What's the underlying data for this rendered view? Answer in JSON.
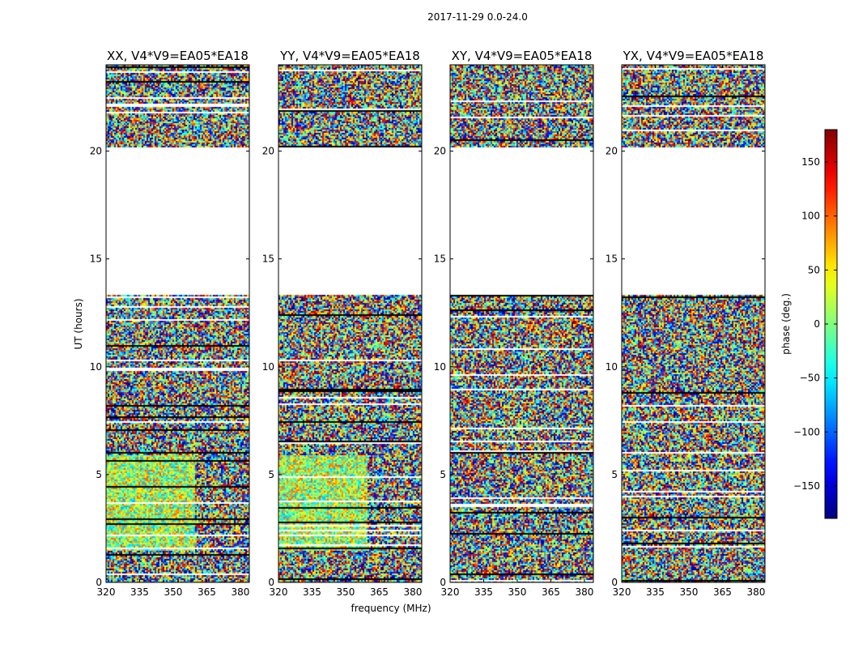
{
  "chart_data": {
    "type": "heatmap",
    "suptitle": "2017-11-29 0.0-24.0",
    "panels": [
      {
        "title": "XX, V4*V9=EA05*EA18"
      },
      {
        "title": "YY, V4*V9=EA05*EA18"
      },
      {
        "title": "XY, V4*V9=EA05*EA18"
      },
      {
        "title": "YX, V4*V9=EA05*EA18"
      }
    ],
    "xlabel": "frequency (MHz)",
    "ylabel": "UT (hours)",
    "xlim": [
      320,
      384
    ],
    "ylim": [
      0,
      24
    ],
    "xticks": [
      320,
      335,
      350,
      365,
      380
    ],
    "yticks": [
      0,
      5,
      10,
      15,
      20
    ],
    "data_gap_hours": [
      20.2,
      13.4
    ],
    "colorbar": {
      "label": "phase (deg.)",
      "range": [
        -180,
        180
      ],
      "ticks": [
        -150,
        -100,
        -50,
        0,
        50,
        100,
        150
      ],
      "colormap": "jet"
    }
  }
}
